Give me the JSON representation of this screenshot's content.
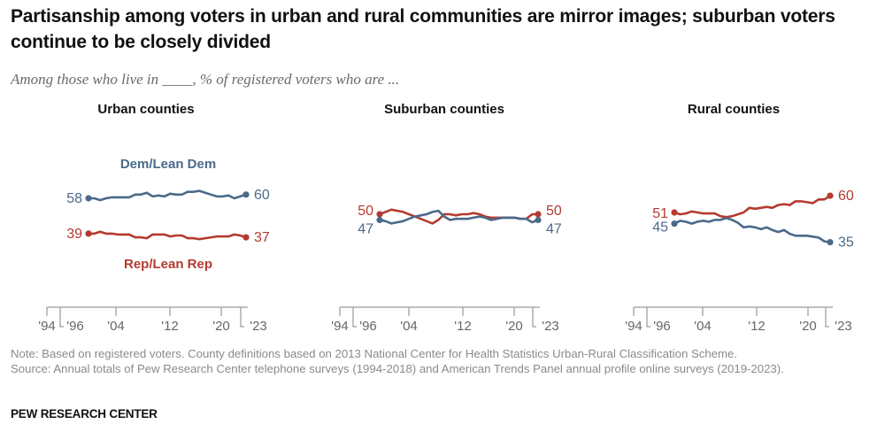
{
  "title": "Partisanship among voters in urban and rural communities are mirror images; suburban voters continue to be closely divided",
  "subtitle": "Among those who live in ____, % of registered voters who are ...",
  "note": "Note: Based on registered voters. County definitions based on 2013 National Center for Health Statistics Urban-Rural Classification Scheme.",
  "source": "Source: Annual totals of Pew Research Center telephone surveys (1994-2018) and American Trends Panel annual profile online surveys (2019-2023).",
  "brand": "PEW RESEARCH CENTER",
  "colors": {
    "dem": "#4a6a8a",
    "rep": "#b53a30",
    "axis": "#9a9a9a"
  },
  "chart_data": [
    {
      "type": "line",
      "title": "Urban counties",
      "x": [
        1996,
        1997,
        1998,
        1999,
        2000,
        2001,
        2002,
        2003,
        2004,
        2005,
        2006,
        2007,
        2008,
        2009,
        2010,
        2011,
        2012,
        2013,
        2014,
        2015,
        2016,
        2017,
        2018,
        2019,
        2020,
        2021,
        2022,
        2023
      ],
      "x_ticks": [
        "'94",
        "'96",
        "'04",
        "'12",
        "'20",
        "'23"
      ],
      "series": [
        {
          "name": "Dem/Lean Dem",
          "start_label": "58",
          "end_label": "60",
          "values": [
            58,
            58,
            57,
            58,
            58.5,
            58.5,
            58.5,
            58.5,
            60,
            60,
            61,
            59,
            59.5,
            59,
            60.5,
            60,
            60,
            61.5,
            61.5,
            62,
            61,
            60,
            59,
            59,
            59.5,
            58,
            59,
            60
          ]
        },
        {
          "name": "Rep/Lean Rep",
          "start_label": "39",
          "end_label": "37",
          "values": [
            39,
            39,
            40,
            39,
            39,
            38.5,
            38.5,
            38.5,
            37,
            37,
            36.5,
            38.5,
            38.5,
            38.5,
            37.5,
            38,
            38,
            36.5,
            36.5,
            36,
            36.5,
            37,
            37.5,
            37.5,
            37.5,
            38.5,
            38,
            37
          ]
        }
      ],
      "ylim": [
        30,
        68
      ]
    },
    {
      "type": "line",
      "title": "Suburban counties",
      "x": [
        1996,
        1997,
        1998,
        1999,
        2000,
        2001,
        2002,
        2003,
        2004,
        2005,
        2006,
        2007,
        2008,
        2009,
        2010,
        2011,
        2012,
        2013,
        2014,
        2015,
        2016,
        2017,
        2018,
        2019,
        2020,
        2021,
        2022,
        2023
      ],
      "x_ticks": [
        "'94",
        "'96",
        "'04",
        "'12",
        "'20",
        "'23"
      ],
      "series": [
        {
          "name": "Rep/Lean Rep",
          "start_label": "50",
          "end_label": "50",
          "values": [
            50,
            51,
            52,
            51.5,
            51,
            50,
            49,
            48,
            47,
            46,
            47.5,
            50,
            50,
            49.5,
            50,
            50,
            50.5,
            50,
            49,
            48.5,
            48.5,
            48.5,
            48.5,
            48.5,
            48,
            48,
            50,
            50
          ]
        },
        {
          "name": "Dem/Lean Dem",
          "start_label": "47",
          "end_label": "47",
          "values": [
            47.5,
            47,
            46,
            46.5,
            47,
            48,
            49,
            49.5,
            50,
            51,
            51.5,
            49,
            47.5,
            48,
            48,
            48,
            48.5,
            49,
            48.5,
            47.5,
            48,
            48.5,
            48.5,
            48.5,
            48,
            48,
            46.5,
            47.5
          ]
        }
      ],
      "ylim": [
        30,
        68
      ]
    },
    {
      "type": "line",
      "title": "Rural counties",
      "x": [
        1996,
        1997,
        1998,
        1999,
        2000,
        2001,
        2002,
        2003,
        2004,
        2005,
        2006,
        2007,
        2008,
        2009,
        2010,
        2011,
        2012,
        2013,
        2014,
        2015,
        2016,
        2017,
        2018,
        2019,
        2020,
        2021,
        2022,
        2023
      ],
      "x_ticks": [
        "'94",
        "'96",
        "'04",
        "'12",
        "'20",
        "'23"
      ],
      "series": [
        {
          "name": "Rep/Lean Rep",
          "start_label": "51",
          "end_label": "60",
          "values": [
            51,
            50,
            50.5,
            51.5,
            51,
            50.5,
            50.5,
            50.5,
            49,
            48.5,
            49,
            50,
            51,
            53.5,
            53,
            53.5,
            54,
            53.5,
            55,
            55.5,
            55,
            57,
            57,
            56.5,
            56,
            58,
            58,
            60
          ]
        },
        {
          "name": "Dem/Lean Dem",
          "start_label": "45",
          "end_label": "35",
          "values": [
            45,
            46.5,
            46,
            45,
            46,
            46.5,
            46,
            47,
            47,
            48,
            47,
            45.5,
            43,
            43.5,
            43,
            42,
            43,
            41.5,
            40.5,
            41.5,
            39.5,
            38.5,
            38.5,
            38.5,
            38,
            37.5,
            35.5,
            35
          ]
        }
      ],
      "ylim": [
        30,
        68
      ]
    }
  ]
}
